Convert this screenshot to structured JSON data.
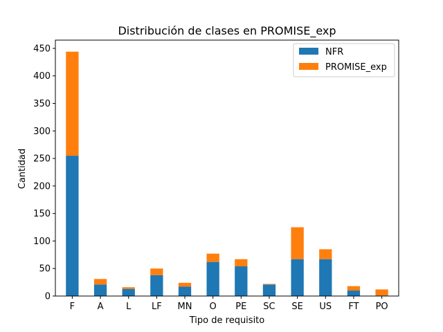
{
  "chart_data": {
    "type": "bar",
    "stacked": true,
    "title": "Distribución de clases en PROMISE_exp",
    "xlabel": "Tipo de requisito",
    "ylabel": "Cantidad",
    "categories": [
      "F",
      "A",
      "L",
      "LF",
      "MN",
      "O",
      "PE",
      "SC",
      "SE",
      "US",
      "FT",
      "PO"
    ],
    "ylim": [
      0,
      465
    ],
    "yticks": [
      0,
      50,
      100,
      150,
      200,
      250,
      300,
      350,
      400,
      450
    ],
    "grid": false,
    "legend_position": "top-right",
    "series": [
      {
        "name": "NFR",
        "color": "#1f77b4",
        "values": [
          255,
          21,
          13,
          38,
          17,
          62,
          54,
          21,
          67,
          67,
          10,
          1
        ]
      },
      {
        "name": "PROMISE_exp",
        "color": "#ff7f0e",
        "values": [
          189,
          10,
          3,
          12,
          7,
          15,
          13,
          1,
          58,
          18,
          8,
          11
        ]
      }
    ]
  }
}
